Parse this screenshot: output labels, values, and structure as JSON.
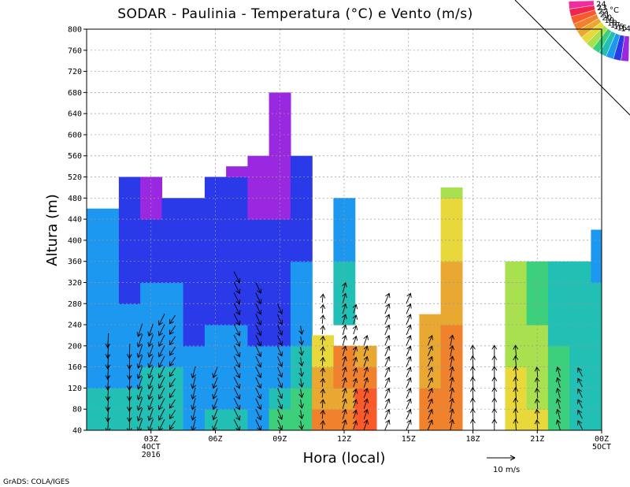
{
  "chart_data": {
    "type": "heatmap",
    "title": "SODAR - Paulinia - Temperatura (°C) e Vento (m/s)",
    "xlabel": "Hora (local)",
    "ylabel": "Altura (m)",
    "x_ticks": [
      {
        "hour": 3,
        "label": "03Z",
        "date": "4OCT",
        "year": "2016"
      },
      {
        "hour": 6,
        "label": "06Z"
      },
      {
        "hour": 9,
        "label": "09Z"
      },
      {
        "hour": 12,
        "label": "12Z"
      },
      {
        "hour": 15,
        "label": "15Z"
      },
      {
        "hour": 18,
        "label": "18Z"
      },
      {
        "hour": 21,
        "label": "21Z"
      },
      {
        "hour": 24,
        "label": "00Z",
        "date": "5OCT"
      }
    ],
    "xlim_hours": [
      0,
      24
    ],
    "ylim": [
      40,
      800
    ],
    "y_ticks": [
      40,
      80,
      120,
      160,
      200,
      240,
      280,
      320,
      360,
      400,
      440,
      480,
      520,
      560,
      600,
      640,
      680,
      720,
      760,
      800
    ],
    "colorbar": {
      "unit": "°C",
      "labels": [
        "24",
        "23",
        "22",
        "21",
        "20",
        "19",
        "18",
        "17",
        "16",
        "15",
        "14"
      ],
      "colors": [
        "#f02da0",
        "#f42250",
        "#fa5a2a",
        "#f0822e",
        "#e8a832",
        "#e8d83c",
        "#a8e050",
        "#3cd07c",
        "#22c0b4",
        "#1c98f0",
        "#2a3ae8",
        "#9a28e0"
      ]
    },
    "reference_vector": {
      "label": "10 m/s",
      "speed": 10
    },
    "temperature_profiles": [
      {
        "hour": 0.0,
        "top": 460,
        "temps": [
          16.1,
          16.1,
          16.0,
          16.0,
          15.9,
          15.9,
          15.8,
          15.7,
          15.6,
          15.5,
          15.4,
          15.3
        ]
      },
      {
        "hour": 1.0,
        "top": 460,
        "temps": [
          16.2,
          16.1,
          16.0,
          15.9,
          15.8,
          15.7,
          15.6,
          15.5,
          15.4,
          15.3,
          15.2,
          15.1
        ]
      },
      {
        "hour": 2.0,
        "top": 520,
        "temps": [
          16.6,
          16.2,
          15.9,
          15.6,
          15.4,
          15.2,
          15.0,
          14.8,
          14.6,
          14.4,
          14.3,
          14.1,
          14.0,
          14.0
        ]
      },
      {
        "hour": 3.0,
        "top": 520,
        "temps": [
          16.9,
          16.6,
          16.3,
          15.9,
          15.7,
          15.4,
          15.2,
          14.9,
          14.5,
          14.1,
          13.9,
          13.6,
          13.6,
          13.7
        ]
      },
      {
        "hour": 4.0,
        "top": 480,
        "temps": [
          16.8,
          16.5,
          16.1,
          15.8,
          15.5,
          15.3,
          15.1,
          14.8,
          14.6,
          14.3,
          14.1,
          14.0,
          14.0
        ]
      },
      {
        "hour": 5.0,
        "top": 480,
        "temps": [
          15.7,
          15.5,
          15.3,
          15.1,
          14.9,
          14.8,
          14.7,
          14.5,
          14.4,
          14.3,
          14.3,
          14.3,
          14.3
        ]
      },
      {
        "hour": 6.0,
        "top": 520,
        "temps": [
          16.1,
          15.9,
          15.6,
          15.4,
          15.2,
          15.0,
          14.9,
          14.7,
          14.5,
          14.4,
          14.3,
          14.2,
          14.1,
          14.0
        ]
      },
      {
        "hour": 7.0,
        "top": 540,
        "temps": [
          16.1,
          15.8,
          15.5,
          15.3,
          15.1,
          14.8,
          14.6,
          14.4,
          14.3,
          14.2,
          14.0,
          14.0,
          13.9,
          13.8,
          13.6
        ]
      },
      {
        "hour": 8.0,
        "top": 560,
        "temps": [
          16.0,
          15.7,
          15.4,
          15.2,
          15.0,
          14.8,
          14.6,
          14.4,
          14.2,
          14.0,
          13.9,
          13.9,
          13.8,
          13.7,
          13.7,
          13.6
        ]
      },
      {
        "hour": 9.0,
        "top": 680,
        "temps": [
          17.1,
          16.4,
          15.8,
          15.3,
          15.0,
          14.8,
          14.6,
          14.4,
          14.2,
          14.0,
          13.9,
          13.8,
          13.8,
          13.7,
          13.6,
          13.5,
          13.4,
          13.4,
          13.3,
          13.3
        ]
      },
      {
        "hour": 10.0,
        "top": 560,
        "temps": [
          17.8,
          17.2,
          16.7,
          16.3,
          16.0,
          15.6,
          15.3,
          15.1,
          14.8,
          14.6,
          14.4,
          14.3,
          14.2,
          14.1,
          13.9,
          13.8
        ]
      },
      {
        "hour": 11.0,
        "top": 220,
        "temps": [
          21.1,
          20.8,
          20.4,
          19.9,
          19.3,
          18.7
        ]
      },
      {
        "hour": 12.0,
        "top": 480,
        "temps": [
          21.3,
          21.0,
          21.6,
          21.2,
          null,
          16.8,
          16.4,
          16.2,
          15.9,
          15.7,
          15.5,
          15.4,
          15.3
        ]
      },
      {
        "hour": 13.0,
        "top": 200,
        "temps": [
          22.8,
          22.2,
          21.5,
          20.9,
          20.3
        ]
      },
      {
        "hour": 16.0,
        "top": 260,
        "temps": [
          21.2,
          21.1,
          21.0,
          20.9,
          20.7,
          20.6
        ]
      },
      {
        "hour": 17.0,
        "top": 500,
        "temps": [
          21.3,
          21.6,
          21.8,
          21.5,
          21.1,
          20.8,
          20.5,
          20.2,
          19.9,
          19.5,
          19.2,
          18.8,
          18.3
        ]
      },
      {
        "hour": 20.0,
        "top": 360,
        "temps": [
          19.6,
          19.4,
          19.2,
          19.0,
          18.8,
          18.6,
          18.4,
          18.2,
          18.0
        ]
      },
      {
        "hour": 21.0,
        "top": 360,
        "temps": [
          19.3,
          19.0,
          18.7,
          18.4,
          18.1,
          17.8,
          17.5,
          17.3,
          17.1
        ]
      },
      {
        "hour": 22.0,
        "top": 360,
        "temps": [
          17.6,
          17.4,
          17.3,
          17.1,
          17.0,
          16.9,
          16.8,
          16.7,
          16.6
        ]
      },
      {
        "hour": 23.0,
        "top": 360,
        "temps": [
          17.0,
          16.9,
          16.8,
          16.8,
          16.6,
          16.5,
          16.3,
          16.1,
          15.9
        ]
      },
      {
        "hour": 24.0,
        "top": 420,
        "temps": [
          16.9,
          16.8,
          16.7,
          16.6,
          16.4,
          16.3,
          16.1,
          15.9,
          15.7,
          15.5,
          15.4
        ]
      }
    ],
    "wind_columns": [
      {
        "hour": 1.0,
        "top": 220,
        "u": -0.3,
        "v": -5.0
      },
      {
        "hour": 2.0,
        "top": 200,
        "u": -0.2,
        "v": -5.0
      },
      {
        "hour": 2.5,
        "top": 240,
        "u": -1.5,
        "v": -4.5
      },
      {
        "hour": 3.0,
        "top": 240,
        "u": -1.5,
        "v": -4.2
      },
      {
        "hour": 3.5,
        "top": 260,
        "u": -2.0,
        "v": -4.0
      },
      {
        "hour": 4.0,
        "top": 260,
        "u": -2.0,
        "v": -3.0
      },
      {
        "hour": 5.0,
        "top": 160,
        "u": -1.0,
        "v": -4.0
      },
      {
        "hour": 6.0,
        "top": 160,
        "u": -1.5,
        "v": -3.8
      },
      {
        "hour": 7.0,
        "top": 340,
        "u": 2.0,
        "v": -4.0
      },
      {
        "hour": 8.0,
        "top": 320,
        "u": 1.8,
        "v": -3.8
      },
      {
        "hour": 9.0,
        "top": 280,
        "u": 1.5,
        "v": -3.5
      },
      {
        "hour": 10.0,
        "top": 240,
        "u": 0.5,
        "v": -3.0
      },
      {
        "hour": 11.0,
        "top": 300,
        "u": 0.3,
        "v": 3.0
      },
      {
        "hour": 12.0,
        "top": 320,
        "u": 1.0,
        "v": 3.5
      },
      {
        "hour": 12.5,
        "top": 280,
        "u": 1.0,
        "v": 3.0
      },
      {
        "hour": 13.0,
        "top": 220,
        "u": 1.2,
        "v": 3.5
      },
      {
        "hour": 14.0,
        "top": 300,
        "u": 1.5,
        "v": 3.5
      },
      {
        "hour": 15.0,
        "top": 300,
        "u": 1.5,
        "v": 3.5
      },
      {
        "hour": 16.0,
        "top": 220,
        "u": 1.5,
        "v": 3.5
      },
      {
        "hour": 17.0,
        "top": 220,
        "u": 0.8,
        "v": 3.8
      },
      {
        "hour": 18.0,
        "top": 200,
        "u": -0.2,
        "v": 4.0
      },
      {
        "hour": 19.0,
        "top": 200,
        "u": 0.0,
        "v": 4.0
      },
      {
        "hour": 20.0,
        "top": 200,
        "u": -0.3,
        "v": 4.0
      },
      {
        "hour": 21.0,
        "top": 160,
        "u": -0.3,
        "v": 3.5
      },
      {
        "hour": 22.0,
        "top": 160,
        "u": -1.0,
        "v": 3.5
      },
      {
        "hour": 23.0,
        "top": 160,
        "u": -1.5,
        "v": 3.0
      }
    ]
  },
  "footer": {
    "credit": "GrADS: COLA/IGES"
  }
}
